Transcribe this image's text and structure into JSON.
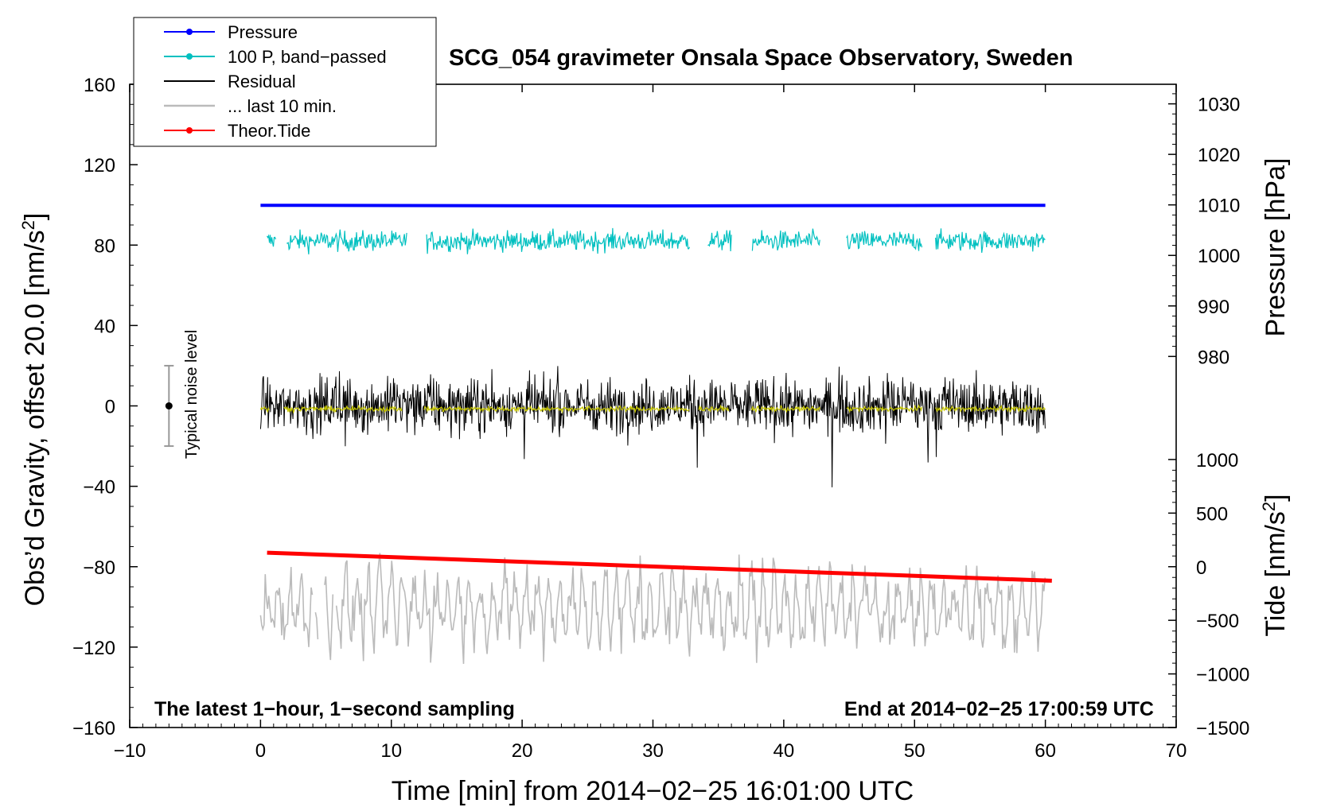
{
  "chart_data": {
    "type": "line",
    "title": "SCG_054 gravimeter Onsala Space Observatory, Sweden",
    "xlabel": "Time [min] from 2014−02−25 16:01:00 UTC",
    "ylabel_left_main": "Obs’d Gravity, offset 20.0 [nm/s",
    "ylabel_left_sup": "2",
    "ylabel_left_end": "]",
    "ylabel_right_top": "Pressure [hPa]",
    "ylabel_right_bottom_main": "Tide [nm/s",
    "ylabel_right_bottom_sup": "2",
    "ylabel_right_bottom_end": "]",
    "note_left": "The latest 1−hour, 1−second sampling",
    "note_right": "End at 2014−02−25 17:00:59 UTC",
    "noise_label": "Typical noise level",
    "noise_bar": {
      "center": 0,
      "half_range": 20,
      "x": -7
    },
    "xlim": [
      -10,
      70
    ],
    "ylim": [
      -160,
      160
    ],
    "x_ticks": [
      {
        "v": -10,
        "label": "−10"
      },
      {
        "v": 0,
        "label": "0"
      },
      {
        "v": 10,
        "label": "10"
      },
      {
        "v": 20,
        "label": "20"
      },
      {
        "v": 30,
        "label": "30"
      },
      {
        "v": 40,
        "label": "40"
      },
      {
        "v": 50,
        "label": "50"
      },
      {
        "v": 60,
        "label": "60"
      },
      {
        "v": 70,
        "label": "70"
      }
    ],
    "y_ticks_left": [
      {
        "v": 160,
        "label": "160"
      },
      {
        "v": 120,
        "label": "120"
      },
      {
        "v": 80,
        "label": "80"
      },
      {
        "v": 40,
        "label": "40"
      },
      {
        "v": 0,
        "label": "0"
      },
      {
        "v": -40,
        "label": "−40"
      },
      {
        "v": -80,
        "label": "−80"
      },
      {
        "v": -120,
        "label": "−120"
      },
      {
        "v": -160,
        "label": "−160"
      }
    ],
    "pressure_axis": {
      "hpa_a": 1010,
      "y_a": 100,
      "hpa_b": 980,
      "y_b": 24.6,
      "ticks": [
        {
          "v": 1030,
          "label": "1030"
        },
        {
          "v": 1020,
          "label": "1020"
        },
        {
          "v": 1010,
          "label": "1010"
        },
        {
          "v": 1000,
          "label": "1000"
        },
        {
          "v": 990,
          "label": "990"
        },
        {
          "v": 980,
          "label": "980"
        }
      ]
    },
    "tide_axis": {
      "tide_a": 0,
      "y_a": -80,
      "tide_b": -1500,
      "y_b": -160,
      "ticks": [
        {
          "v": 1000,
          "label": "1000"
        },
        {
          "v": 500,
          "label": "500"
        },
        {
          "v": 0,
          "label": "0"
        },
        {
          "v": -500,
          "label": "−500"
        },
        {
          "v": -1000,
          "label": "−1000"
        },
        {
          "v": -1500,
          "label": "−1500"
        }
      ]
    },
    "legend": [
      {
        "name": "Pressure",
        "color": "#0000ff",
        "marker": true
      },
      {
        "name": "100 P, band−passed",
        "color": "#00c0c0",
        "marker": true
      },
      {
        "name": "Residual",
        "color": "#000000",
        "marker": false
      },
      {
        "name": "... last 10 min.",
        "color": "#bbbbbb",
        "marker": false
      },
      {
        "name": "Theor.Tide",
        "color": "#ff0000",
        "marker": true
      }
    ],
    "series": [
      {
        "name": "Pressure",
        "color": "#0000ff",
        "kind": "smooth",
        "x": [
          0,
          30,
          60
        ],
        "y": [
          99.8,
          99.5,
          99.8
        ]
      },
      {
        "name": "100 P, band−passed",
        "color": "#00c0c0",
        "kind": "noise",
        "center": 82,
        "amp": 6,
        "segments": [
          [
            0.5,
            1.2
          ],
          [
            2.0,
            11.2
          ],
          [
            12.7,
            32.8
          ],
          [
            34.2,
            36.0
          ],
          [
            37.6,
            42.8
          ],
          [
            44.8,
            50.6
          ],
          [
            51.6,
            60.0
          ]
        ]
      },
      {
        "name": "Residual",
        "color": "#000000",
        "kind": "noise",
        "center": 0,
        "amp": 17,
        "segments": [
          [
            0.0,
            60.0
          ]
        ]
      },
      {
        "name": "Residual (smoothed)",
        "color": "#c8c800",
        "kind": "noise",
        "center": -1.5,
        "amp": 1.5,
        "segments": [
          [
            0.0,
            0.7
          ],
          [
            1.8,
            10.8
          ],
          [
            12.5,
            32.8
          ],
          [
            33.5,
            35.8
          ],
          [
            37.5,
            42.8
          ],
          [
            44.8,
            50.6
          ],
          [
            51.6,
            60.0
          ]
        ]
      },
      {
        "name": "... last 10 min.",
        "color": "#bbbbbb",
        "kind": "noise",
        "center": -100,
        "amp": 18,
        "segments": [
          [
            0.0,
            4.0
          ],
          [
            4.2,
            4.4
          ],
          [
            4.9,
            5.6
          ],
          [
            5.8,
            60.0
          ]
        ]
      },
      {
        "name": "Theor.Tide",
        "color": "#ff0000",
        "kind": "smooth",
        "x": [
          0.5,
          60.5
        ],
        "y": [
          -73,
          -87
        ]
      }
    ]
  }
}
